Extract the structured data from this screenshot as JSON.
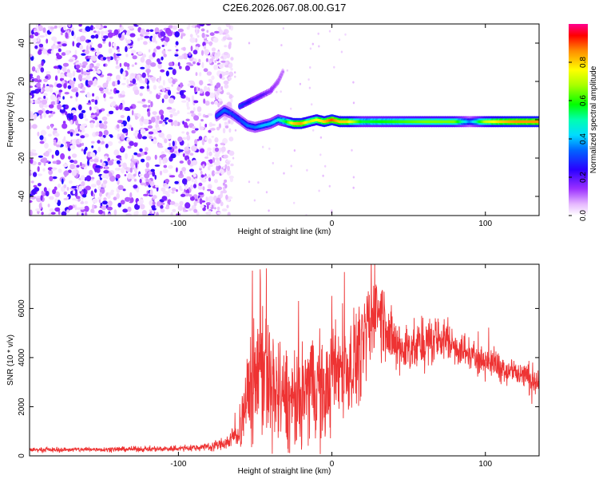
{
  "figure_title": "C2E6.2026.067.08.00.G17",
  "colors": {
    "snr_line": "#ee3333",
    "background": "#ffffff",
    "axis": "#000000"
  },
  "chart_data": [
    {
      "type": "heatmap",
      "title": "C2E6.2026.067.08.00.G17",
      "xlabel": "Height of straight line (km)",
      "ylabel": "Frequency (Hz)",
      "xlim": [
        -197,
        135
      ],
      "ylim": [
        -50,
        50
      ],
      "x_ticks": [
        -100,
        0,
        100
      ],
      "x_tick_labels": [
        "-100",
        "0",
        "100"
      ],
      "y_ticks": [
        -40,
        -20,
        0,
        20,
        40
      ],
      "y_tick_labels": [
        "-40",
        "-20",
        "0",
        "20",
        "40"
      ],
      "colorbar": {
        "label": "Normalized spectral amplitude",
        "range": [
          0,
          1
        ],
        "ticks": [
          0.0,
          0.2,
          0.4,
          0.6,
          0.8
        ],
        "tick_labels": [
          "0.0",
          "0.2",
          "0.4",
          "0.6",
          "0.8"
        ],
        "colormap": "rainbow (violet to red)"
      },
      "noise_region_x": [
        -197,
        -65
      ],
      "main_ridge": {
        "x": [
          -75,
          -70,
          -65,
          -60,
          -55,
          -50,
          -45,
          -40,
          -35,
          -30,
          -25,
          -20,
          -15,
          -10,
          -5,
          0,
          5,
          10,
          20,
          40,
          60,
          80,
          90,
          100,
          110,
          120,
          135
        ],
        "frequency": [
          2,
          5,
          3,
          0,
          -3,
          -4,
          -3,
          -2,
          0,
          -1,
          -2,
          -2,
          -1,
          0,
          -1,
          0,
          -1,
          -1,
          -1,
          -1,
          -1,
          -1,
          -1,
          -1,
          -1,
          -1,
          -1
        ],
        "amplitude": [
          0.3,
          0.35,
          0.3,
          0.3,
          0.35,
          0.35,
          0.4,
          0.4,
          0.45,
          0.55,
          0.8,
          0.85,
          0.7,
          0.75,
          0.8,
          0.9,
          0.8,
          0.8,
          0.55,
          0.6,
          0.65,
          0.65,
          0.35,
          0.7,
          0.8,
          0.85,
          0.85
        ]
      },
      "branch_ridge": {
        "x": [
          -60,
          -55,
          -50,
          -45,
          -40,
          -35,
          -32
        ],
        "frequency": [
          7,
          9,
          11,
          13,
          15,
          20,
          25
        ],
        "amplitude": [
          0.3,
          0.25,
          0.2,
          0.2,
          0.15,
          0.12,
          0.1
        ]
      }
    },
    {
      "type": "line",
      "xlabel": "Height of straight line (km)",
      "ylabel": "SNR (10 * v/v)",
      "xlim": [
        -197,
        135
      ],
      "ylim": [
        0,
        7800
      ],
      "x_ticks": [
        -100,
        0,
        100
      ],
      "x_tick_labels": [
        "-100",
        "0",
        "100"
      ],
      "y_ticks": [
        0,
        2000,
        4000,
        6000
      ],
      "y_tick_labels": [
        "0",
        "2000",
        "4000",
        "6000"
      ],
      "series": [
        {
          "name": "SNR",
          "x": [
            -197,
            -180,
            -160,
            -140,
            -120,
            -100,
            -90,
            -80,
            -70,
            -65,
            -60,
            -55,
            -52,
            -50,
            -47,
            -45,
            -42,
            -40,
            -35,
            -30,
            -25,
            -20,
            -15,
            -10,
            -5,
            0,
            5,
            10,
            15,
            20,
            25,
            28,
            30,
            35,
            40,
            45,
            50,
            55,
            60,
            65,
            70,
            75,
            80,
            85,
            90,
            95,
            100,
            110,
            120,
            130,
            135
          ],
          "mean": [
            250,
            250,
            260,
            270,
            280,
            300,
            330,
            380,
            500,
            700,
            1100,
            2200,
            3500,
            3000,
            4500,
            3800,
            3000,
            2800,
            2600,
            2300,
            2000,
            2300,
            2900,
            3100,
            2400,
            3200,
            3800,
            3600,
            4000,
            4400,
            5200,
            6400,
            6000,
            5400,
            4500,
            4300,
            4500,
            4400,
            4500,
            4700,
            4800,
            4700,
            4500,
            4300,
            4100,
            4000,
            3900,
            3600,
            3400,
            3100,
            3000
          ],
          "amp": [
            80,
            80,
            90,
            90,
            100,
            110,
            130,
            150,
            250,
            350,
            700,
            1800,
            2800,
            2500,
            3000,
            2800,
            2300,
            2200,
            2000,
            1900,
            1700,
            1800,
            2000,
            2100,
            1800,
            1800,
            1900,
            1800,
            1800,
            1700,
            1700,
            1500,
            1500,
            1400,
            1100,
            1000,
            1000,
            900,
            900,
            900,
            800,
            750,
            700,
            650,
            600,
            600,
            600,
            550,
            550,
            550,
            550
          ]
        }
      ]
    }
  ]
}
